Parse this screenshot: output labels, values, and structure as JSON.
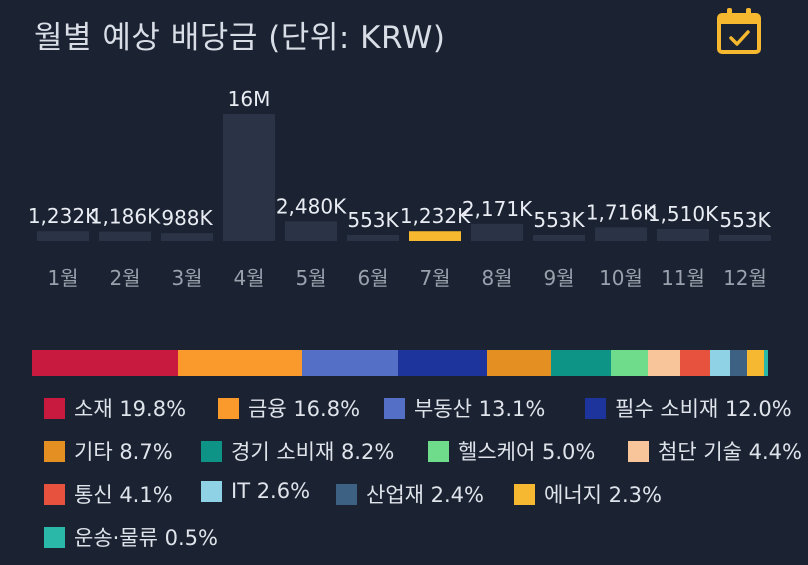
{
  "title": "월별 예상 배당금 (단위: KRW)",
  "calendar_icon": "calendar-check-icon",
  "colors": {
    "background": "#1b2232",
    "bar": "#2b3446",
    "bar_highlight": "#f5b82e",
    "calendar_icon": "#f5b82e",
    "text": "#e9edf3",
    "axis_text": "#9aa1ad"
  },
  "chart_data": [
    {
      "type": "bar",
      "categories": [
        "1월",
        "2월",
        "3월",
        "4월",
        "5월",
        "6월",
        "7월",
        "8월",
        "9월",
        "10월",
        "11월",
        "12월"
      ],
      "values": [
        1232000,
        1186000,
        988000,
        16000000,
        2480000,
        553000,
        1232000,
        2171000,
        553000,
        1716000,
        1510000,
        553000
      ],
      "data_labels": [
        "1,232K",
        "1,186K",
        "988K",
        "16M",
        "2,480K",
        "553K",
        "1,232K",
        "2,171K",
        "553K",
        "1,716K",
        "1,510K",
        "553K"
      ],
      "highlighted_category": "7월",
      "title": "월별 예상 배당금 (단위: KRW)",
      "xlabel": "",
      "ylabel": "",
      "grid": false
    },
    {
      "type": "bar",
      "stacked": true,
      "orientation": "horizontal",
      "series": [
        {
          "name": "소재",
          "percent": "19.8%",
          "value": 19.8,
          "color": "#c8193f"
        },
        {
          "name": "금융",
          "percent": "16.8%",
          "value": 16.8,
          "color": "#fa9a2c"
        },
        {
          "name": "부동산",
          "percent": "13.1%",
          "value": 13.1,
          "color": "#5470c6"
        },
        {
          "name": "필수 소비재",
          "percent": "12.0%",
          "value": 12.0,
          "color": "#1d349c"
        },
        {
          "name": "기타",
          "percent": "8.7%",
          "value": 8.7,
          "color": "#e48f22"
        },
        {
          "name": "경기 소비재",
          "percent": "8.2%",
          "value": 8.2,
          "color": "#0e9387"
        },
        {
          "name": "헬스케어",
          "percent": "5.0%",
          "value": 5.0,
          "color": "#6fdc8c"
        },
        {
          "name": "첨단 기술",
          "percent": "4.4%",
          "value": 4.4,
          "color": "#f8c59a"
        },
        {
          "name": "통신",
          "percent": "4.1%",
          "value": 4.1,
          "color": "#e6523d"
        },
        {
          "name": "IT",
          "percent": "2.6%",
          "value": 2.6,
          "color": "#8fd2e6"
        },
        {
          "name": "산업재",
          "percent": "2.4%",
          "value": 2.4,
          "color": "#3c6182"
        },
        {
          "name": "에너지",
          "percent": "2.3%",
          "value": 2.3,
          "color": "#f6b830"
        },
        {
          "name": "운송·물류",
          "percent": "0.5%",
          "value": 0.5,
          "color": "#2ab8a8"
        }
      ],
      "legend_placement": "bottom"
    }
  ]
}
